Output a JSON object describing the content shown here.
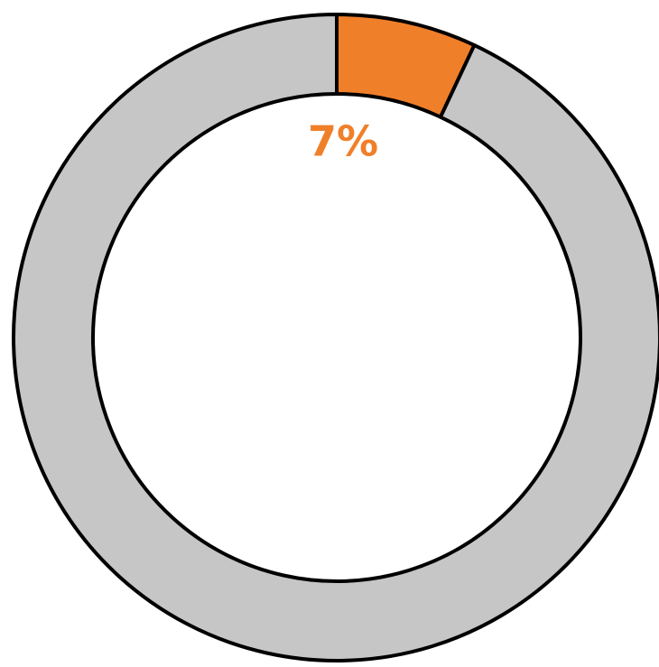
{
  "chart_data": {
    "type": "donut",
    "values": [
      7,
      93
    ],
    "value_labels": [
      "7%",
      null
    ],
    "colors": [
      "#f07f2a",
      "#c6c6c6"
    ]
  }
}
